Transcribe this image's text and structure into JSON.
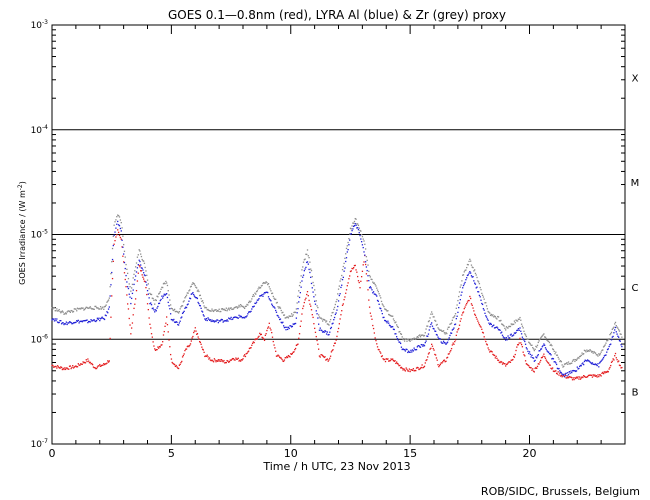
{
  "chart_data": {
    "type": "scatter",
    "title": "GOES 0.1—0.8nm (red), LYRA Al (blue) & Zr (grey) proxy",
    "xlabel": "Time / h UTC, 23 Nov 2013",
    "ylabel": "GOES Irradiance / (W m",
    "ylabel_exp": "-2",
    "ylabel_close": ")",
    "xlim": [
      0,
      24
    ],
    "ylim_exp": [
      -7,
      -3
    ],
    "y_scale": "log",
    "x_ticks": [
      {
        "v": 0,
        "label": "0"
      },
      {
        "v": 5,
        "label": "5"
      },
      {
        "v": 10,
        "label": "10"
      },
      {
        "v": 15,
        "label": "15"
      },
      {
        "v": 20,
        "label": "20"
      }
    ],
    "y_ticks": [
      {
        "e": -7,
        "base": "10",
        "exp": "-7"
      },
      {
        "e": -6,
        "base": "10",
        "exp": "-6"
      },
      {
        "e": -5,
        "base": "10",
        "exp": "-5"
      },
      {
        "e": -4,
        "base": "10",
        "exp": "-4"
      },
      {
        "e": -3,
        "base": "10",
        "exp": "-3"
      }
    ],
    "thresholds": [
      -6,
      -5,
      -4
    ],
    "flare_classes": [
      {
        "label": "X",
        "e": -3.5
      },
      {
        "label": "M",
        "e": -4.5
      },
      {
        "label": "C",
        "e": -5.5
      },
      {
        "label": "B",
        "e": -6.5
      }
    ],
    "series": [
      {
        "name": "GOES 0.1-0.8nm",
        "color": "#e31a1c",
        "points": [
          [
            0.0,
            -6.25
          ],
          [
            0.5,
            -6.28
          ],
          [
            1.0,
            -6.26
          ],
          [
            1.5,
            -6.2
          ],
          [
            1.8,
            -6.27
          ],
          [
            2.2,
            -6.24
          ],
          [
            2.4,
            -6.2
          ],
          [
            2.5,
            -5.6
          ],
          [
            2.6,
            -5.1
          ],
          [
            2.75,
            -4.95
          ],
          [
            2.9,
            -5.05
          ],
          [
            3.1,
            -5.5
          ],
          [
            3.3,
            -5.95
          ],
          [
            3.5,
            -5.6
          ],
          [
            3.65,
            -5.3
          ],
          [
            3.9,
            -5.45
          ],
          [
            4.1,
            -5.85
          ],
          [
            4.3,
            -6.1
          ],
          [
            4.6,
            -6.05
          ],
          [
            4.8,
            -5.8
          ],
          [
            5.0,
            -6.2
          ],
          [
            5.3,
            -6.28
          ],
          [
            5.6,
            -6.1
          ],
          [
            5.8,
            -6.05
          ],
          [
            6.0,
            -5.9
          ],
          [
            6.15,
            -6.0
          ],
          [
            6.4,
            -6.15
          ],
          [
            6.7,
            -6.2
          ],
          [
            7.0,
            -6.2
          ],
          [
            7.3,
            -6.22
          ],
          [
            7.6,
            -6.18
          ],
          [
            7.9,
            -6.2
          ],
          [
            8.1,
            -6.15
          ],
          [
            8.4,
            -6.05
          ],
          [
            8.7,
            -5.95
          ],
          [
            8.9,
            -6.0
          ],
          [
            9.1,
            -5.85
          ],
          [
            9.4,
            -6.15
          ],
          [
            9.7,
            -6.2
          ],
          [
            10.0,
            -6.15
          ],
          [
            10.3,
            -6.05
          ],
          [
            10.5,
            -5.7
          ],
          [
            10.7,
            -5.55
          ],
          [
            10.9,
            -5.75
          ],
          [
            11.2,
            -6.15
          ],
          [
            11.6,
            -6.2
          ],
          [
            11.9,
            -6.0
          ],
          [
            12.2,
            -5.65
          ],
          [
            12.5,
            -5.35
          ],
          [
            12.7,
            -5.3
          ],
          [
            12.9,
            -5.5
          ],
          [
            13.1,
            -5.2
          ],
          [
            13.3,
            -5.7
          ],
          [
            13.6,
            -6.05
          ],
          [
            13.9,
            -6.2
          ],
          [
            14.3,
            -6.2
          ],
          [
            14.7,
            -6.28
          ],
          [
            15.0,
            -6.3
          ],
          [
            15.3,
            -6.28
          ],
          [
            15.6,
            -6.25
          ],
          [
            15.9,
            -6.05
          ],
          [
            16.2,
            -6.25
          ],
          [
            16.5,
            -6.2
          ],
          [
            16.9,
            -6.0
          ],
          [
            17.2,
            -5.75
          ],
          [
            17.5,
            -5.6
          ],
          [
            17.7,
            -5.75
          ],
          [
            18.0,
            -5.9
          ],
          [
            18.3,
            -6.1
          ],
          [
            18.7,
            -6.2
          ],
          [
            19.0,
            -6.25
          ],
          [
            19.3,
            -6.2
          ],
          [
            19.6,
            -6.0
          ],
          [
            19.9,
            -6.25
          ],
          [
            20.2,
            -6.3
          ],
          [
            20.6,
            -6.15
          ],
          [
            21.0,
            -6.3
          ],
          [
            21.4,
            -6.35
          ],
          [
            21.9,
            -6.38
          ],
          [
            22.4,
            -6.35
          ],
          [
            22.9,
            -6.35
          ],
          [
            23.3,
            -6.3
          ],
          [
            23.6,
            -6.15
          ],
          [
            23.9,
            -6.3
          ]
        ]
      },
      {
        "name": "LYRA Al",
        "color": "#1f1fd6",
        "points": [
          [
            0.0,
            -5.8
          ],
          [
            0.5,
            -5.85
          ],
          [
            1.0,
            -5.83
          ],
          [
            1.5,
            -5.83
          ],
          [
            2.2,
            -5.8
          ],
          [
            2.4,
            -5.7
          ],
          [
            2.5,
            -5.35
          ],
          [
            2.6,
            -5.0
          ],
          [
            2.75,
            -4.88
          ],
          [
            2.9,
            -4.98
          ],
          [
            3.1,
            -5.4
          ],
          [
            3.3,
            -5.65
          ],
          [
            3.5,
            -5.4
          ],
          [
            3.65,
            -5.25
          ],
          [
            3.9,
            -5.4
          ],
          [
            4.1,
            -5.65
          ],
          [
            4.3,
            -5.75
          ],
          [
            4.6,
            -5.6
          ],
          [
            4.8,
            -5.55
          ],
          [
            5.0,
            -5.8
          ],
          [
            5.3,
            -5.85
          ],
          [
            5.6,
            -5.7
          ],
          [
            5.9,
            -5.55
          ],
          [
            6.15,
            -5.65
          ],
          [
            6.4,
            -5.8
          ],
          [
            6.8,
            -5.83
          ],
          [
            7.2,
            -5.82
          ],
          [
            7.6,
            -5.8
          ],
          [
            7.9,
            -5.78
          ],
          [
            8.1,
            -5.8
          ],
          [
            8.4,
            -5.7
          ],
          [
            8.7,
            -5.6
          ],
          [
            9.0,
            -5.55
          ],
          [
            9.4,
            -5.75
          ],
          [
            9.8,
            -5.9
          ],
          [
            10.2,
            -5.85
          ],
          [
            10.5,
            -5.4
          ],
          [
            10.7,
            -5.25
          ],
          [
            10.9,
            -5.5
          ],
          [
            11.2,
            -5.9
          ],
          [
            11.6,
            -5.95
          ],
          [
            11.9,
            -5.75
          ],
          [
            12.2,
            -5.4
          ],
          [
            12.5,
            -5.0
          ],
          [
            12.7,
            -4.9
          ],
          [
            12.9,
            -5.0
          ],
          [
            13.1,
            -5.2
          ],
          [
            13.3,
            -5.5
          ],
          [
            13.6,
            -5.6
          ],
          [
            13.9,
            -5.8
          ],
          [
            14.3,
            -5.9
          ],
          [
            14.7,
            -6.1
          ],
          [
            15.0,
            -6.12
          ],
          [
            15.3,
            -6.08
          ],
          [
            15.6,
            -6.05
          ],
          [
            15.9,
            -5.85
          ],
          [
            16.2,
            -6.0
          ],
          [
            16.5,
            -6.05
          ],
          [
            16.9,
            -5.85
          ],
          [
            17.2,
            -5.5
          ],
          [
            17.5,
            -5.35
          ],
          [
            17.7,
            -5.45
          ],
          [
            18.0,
            -5.65
          ],
          [
            18.3,
            -5.85
          ],
          [
            18.7,
            -5.9
          ],
          [
            19.0,
            -6.0
          ],
          [
            19.3,
            -5.95
          ],
          [
            19.6,
            -5.9
          ],
          [
            19.9,
            -6.1
          ],
          [
            20.2,
            -6.2
          ],
          [
            20.6,
            -6.05
          ],
          [
            21.0,
            -6.2
          ],
          [
            21.4,
            -6.35
          ],
          [
            21.9,
            -6.3
          ],
          [
            22.4,
            -6.2
          ],
          [
            22.9,
            -6.25
          ],
          [
            23.3,
            -6.1
          ],
          [
            23.6,
            -5.9
          ],
          [
            23.9,
            -6.1
          ]
        ]
      },
      {
        "name": "LYRA Zr",
        "color": "#8c8c8c",
        "points": [
          [
            0.0,
            -5.7
          ],
          [
            0.5,
            -5.75
          ],
          [
            1.0,
            -5.72
          ],
          [
            1.5,
            -5.7
          ],
          [
            2.2,
            -5.7
          ],
          [
            2.4,
            -5.6
          ],
          [
            2.5,
            -5.25
          ],
          [
            2.6,
            -4.92
          ],
          [
            2.75,
            -4.8
          ],
          [
            2.9,
            -4.88
          ],
          [
            3.1,
            -5.3
          ],
          [
            3.3,
            -5.55
          ],
          [
            3.5,
            -5.3
          ],
          [
            3.65,
            -5.15
          ],
          [
            3.9,
            -5.3
          ],
          [
            4.1,
            -5.55
          ],
          [
            4.3,
            -5.65
          ],
          [
            4.6,
            -5.5
          ],
          [
            4.8,
            -5.45
          ],
          [
            5.0,
            -5.7
          ],
          [
            5.3,
            -5.75
          ],
          [
            5.6,
            -5.6
          ],
          [
            5.9,
            -5.45
          ],
          [
            6.15,
            -5.55
          ],
          [
            6.4,
            -5.7
          ],
          [
            6.8,
            -5.73
          ],
          [
            7.2,
            -5.72
          ],
          [
            7.6,
            -5.7
          ],
          [
            7.9,
            -5.68
          ],
          [
            8.1,
            -5.7
          ],
          [
            8.4,
            -5.6
          ],
          [
            8.7,
            -5.5
          ],
          [
            9.0,
            -5.45
          ],
          [
            9.4,
            -5.65
          ],
          [
            9.8,
            -5.8
          ],
          [
            10.2,
            -5.75
          ],
          [
            10.5,
            -5.3
          ],
          [
            10.7,
            -5.15
          ],
          [
            10.9,
            -5.4
          ],
          [
            11.2,
            -5.8
          ],
          [
            11.6,
            -5.85
          ],
          [
            11.9,
            -5.65
          ],
          [
            12.2,
            -5.3
          ],
          [
            12.5,
            -4.95
          ],
          [
            12.7,
            -4.85
          ],
          [
            12.9,
            -4.95
          ],
          [
            13.1,
            -5.1
          ],
          [
            13.3,
            -5.4
          ],
          [
            13.6,
            -5.5
          ],
          [
            13.9,
            -5.7
          ],
          [
            14.3,
            -5.8
          ],
          [
            14.7,
            -6.0
          ],
          [
            15.0,
            -6.02
          ],
          [
            15.3,
            -5.98
          ],
          [
            15.6,
            -5.95
          ],
          [
            15.9,
            -5.75
          ],
          [
            16.2,
            -5.9
          ],
          [
            16.5,
            -5.95
          ],
          [
            16.9,
            -5.75
          ],
          [
            17.2,
            -5.4
          ],
          [
            17.5,
            -5.25
          ],
          [
            17.7,
            -5.35
          ],
          [
            18.0,
            -5.55
          ],
          [
            18.3,
            -5.75
          ],
          [
            18.7,
            -5.8
          ],
          [
            19.0,
            -5.9
          ],
          [
            19.3,
            -5.85
          ],
          [
            19.6,
            -5.8
          ],
          [
            19.9,
            -6.0
          ],
          [
            20.2,
            -6.1
          ],
          [
            20.6,
            -5.95
          ],
          [
            21.0,
            -6.1
          ],
          [
            21.4,
            -6.25
          ],
          [
            21.9,
            -6.2
          ],
          [
            22.4,
            -6.1
          ],
          [
            22.9,
            -6.15
          ],
          [
            23.3,
            -6.0
          ],
          [
            23.6,
            -5.85
          ],
          [
            23.9,
            -6.0
          ]
        ]
      }
    ],
    "credit": "ROB/SIDC, Brussels, Belgium"
  }
}
